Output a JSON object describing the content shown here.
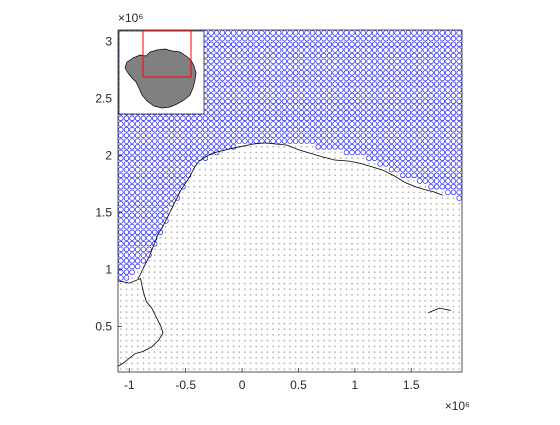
{
  "chart_data": {
    "type": "scatter",
    "title": "",
    "xlabel": "",
    "ylabel": "",
    "x_exponent_label": "×10⁶",
    "y_exponent_label": "×10⁶",
    "xlim": [
      -1.1,
      1.95
    ],
    "ylim": [
      0.1,
      3.1
    ],
    "x_ticks": [
      -1,
      -0.5,
      0,
      0.5,
      1,
      1.5
    ],
    "x_tick_labels": [
      "-1",
      "-0.5",
      "0",
      "0.5",
      "1",
      "1.5"
    ],
    "y_ticks": [
      0.5,
      1,
      1.5,
      2,
      2.5,
      3
    ],
    "y_tick_labels": [
      "0.5",
      "1",
      "1.5",
      "2",
      "2.5",
      "3"
    ],
    "grid": false,
    "grid_spacing": 0.05,
    "series": [
      {
        "role": "open-ocean grid points (circles)",
        "color": "#0000ff",
        "marker": "circle-open"
      },
      {
        "role": "ice-shelf grid points (dots)",
        "color": "#b3b3b3",
        "marker": "dot"
      },
      {
        "role": "coastline",
        "color": "#000000",
        "marker": "line"
      }
    ],
    "boundary": {
      "description": "southern limit of open-ocean circles by x",
      "x": [
        -1.1,
        -1.0,
        -0.9,
        -0.8,
        -0.7,
        -0.62,
        -0.5,
        -0.42,
        -0.3,
        -0.2,
        -0.1,
        0.0,
        0.15,
        0.3,
        0.45,
        0.6,
        0.75,
        0.9,
        1.05,
        1.2,
        1.35,
        1.5,
        1.6,
        1.7,
        1.8,
        1.9,
        1.95
      ],
      "y": [
        0.87,
        0.9,
        1.02,
        1.15,
        1.35,
        1.55,
        1.75,
        1.9,
        1.97,
        2.02,
        2.06,
        2.09,
        2.11,
        2.12,
        2.11,
        2.09,
        2.06,
        2.03,
        1.99,
        1.93,
        1.86,
        1.79,
        1.74,
        1.7,
        1.68,
        1.62,
        1.6
      ]
    },
    "coastline": [
      [
        -1.1,
        0.9
      ],
      [
        -1.0,
        0.88
      ],
      [
        -0.9,
        0.92
      ],
      [
        -0.88,
        0.82
      ],
      [
        -0.85,
        0.72
      ],
      [
        -0.8,
        0.66
      ],
      [
        -0.76,
        0.58
      ],
      [
        -0.72,
        0.5
      ],
      [
        -0.7,
        0.44
      ],
      [
        -0.74,
        0.38
      ],
      [
        -0.8,
        0.32
      ],
      [
        -0.88,
        0.28
      ],
      [
        -0.95,
        0.26
      ],
      [
        -1.0,
        0.22
      ],
      [
        -1.05,
        0.18
      ],
      [
        -1.1,
        0.15
      ]
    ],
    "coastline_main": [
      [
        -0.92,
        0.92
      ],
      [
        -0.87,
        1.02
      ],
      [
        -0.82,
        1.12
      ],
      [
        -0.78,
        1.22
      ],
      [
        -0.75,
        1.3
      ],
      [
        -0.7,
        1.38
      ],
      [
        -0.66,
        1.46
      ],
      [
        -0.62,
        1.54
      ],
      [
        -0.58,
        1.62
      ],
      [
        -0.54,
        1.7
      ],
      [
        -0.5,
        1.76
      ],
      [
        -0.46,
        1.82
      ],
      [
        -0.42,
        1.9
      ],
      [
        -0.38,
        1.95
      ],
      [
        -0.32,
        1.99
      ],
      [
        -0.26,
        2.02
      ],
      [
        -0.18,
        2.04
      ],
      [
        -0.1,
        2.06
      ],
      [
        0.0,
        2.08
      ],
      [
        0.1,
        2.1
      ],
      [
        0.2,
        2.11
      ],
      [
        0.3,
        2.1
      ],
      [
        0.4,
        2.09
      ],
      [
        0.5,
        2.05
      ],
      [
        0.6,
        2.02
      ],
      [
        0.7,
        1.99
      ],
      [
        0.82,
        1.96
      ],
      [
        0.95,
        1.95
      ],
      [
        1.05,
        1.93
      ],
      [
        1.15,
        1.9
      ],
      [
        1.25,
        1.87
      ],
      [
        1.35,
        1.82
      ],
      [
        1.45,
        1.76
      ],
      [
        1.55,
        1.72
      ],
      [
        1.62,
        1.7
      ],
      [
        1.7,
        1.68
      ],
      [
        1.78,
        1.65
      ]
    ],
    "inset": {
      "description": "overview map of Antarctica with red box showing plotted region",
      "land_color": "#808080",
      "box_color": "#ff0000"
    }
  }
}
